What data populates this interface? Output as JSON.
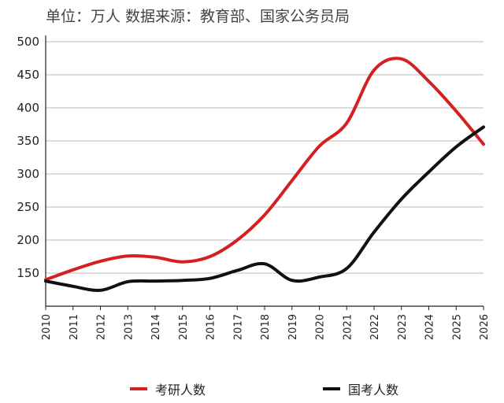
{
  "chart_data": {
    "type": "line",
    "subtitle": "单位：万人  数据来源：教育部、国家公务员局",
    "x": [
      2010,
      2011,
      2012,
      2013,
      2014,
      2015,
      2016,
      2017,
      2018,
      2019,
      2020,
      2021,
      2022,
      2023,
      2024,
      2025,
      2026
    ],
    "ylim": [
      100,
      500
    ],
    "yticks": [
      150,
      200,
      250,
      300,
      350,
      400,
      450,
      500
    ],
    "grid": true,
    "legend_position": "bottom",
    "series": [
      {
        "name": "考研人数",
        "color": "#d42020",
        "points": [
          [
            2010,
            140
          ],
          [
            2011,
            155
          ],
          [
            2012,
            168
          ],
          [
            2013,
            176
          ],
          [
            2014,
            174
          ],
          [
            2015,
            167
          ],
          [
            2016,
            175
          ],
          [
            2017,
            200
          ],
          [
            2018,
            238
          ],
          [
            2019,
            290
          ],
          [
            2020,
            342
          ],
          [
            2021,
            377
          ],
          [
            2022,
            457
          ],
          [
            2023,
            474
          ],
          [
            2024,
            440
          ],
          [
            2025,
            395
          ],
          [
            2026,
            345
          ]
        ]
      },
      {
        "name": "国考人数",
        "color": "#111111",
        "points": [
          [
            2010,
            138
          ],
          [
            2011,
            130
          ],
          [
            2012,
            124
          ],
          [
            2013,
            137
          ],
          [
            2014,
            138
          ],
          [
            2015,
            139
          ],
          [
            2016,
            142
          ],
          [
            2017,
            154
          ],
          [
            2018,
            164
          ],
          [
            2019,
            139
          ],
          [
            2020,
            144
          ],
          [
            2021,
            157
          ],
          [
            2022,
            212
          ],
          [
            2023,
            262
          ],
          [
            2024,
            303
          ],
          [
            2025,
            341
          ],
          [
            2026,
            371
          ]
        ]
      }
    ]
  }
}
